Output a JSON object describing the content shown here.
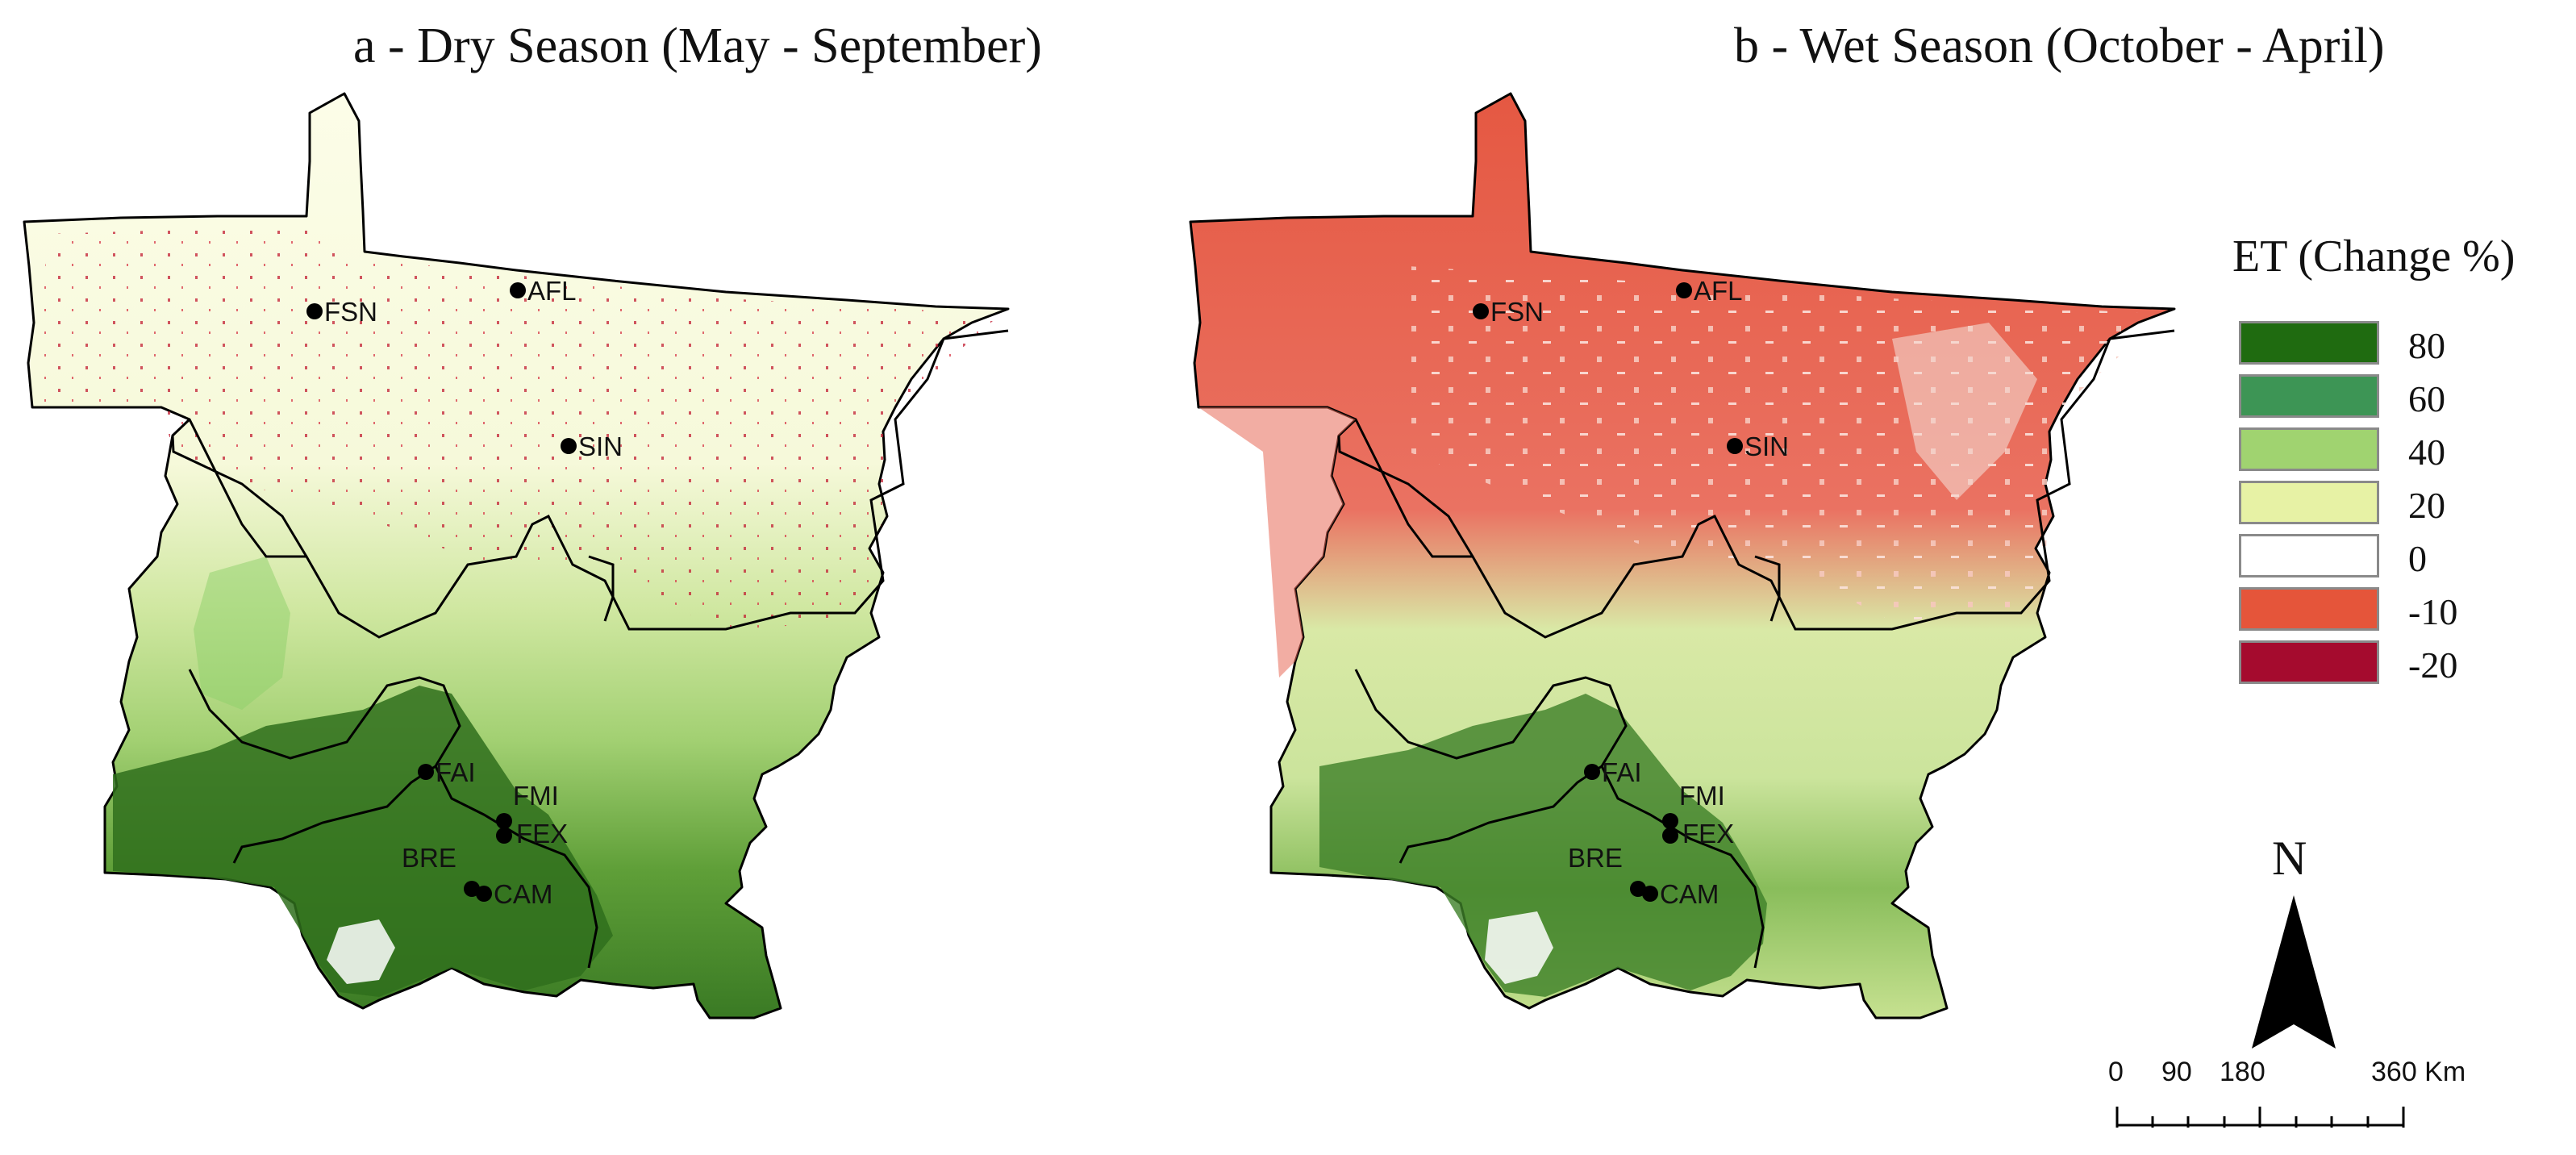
{
  "panels": [
    {
      "title": "a - Dry Season (May - September)",
      "sites": [
        {
          "code": "FSN"
        },
        {
          "code": "AFL"
        },
        {
          "code": "SIN"
        },
        {
          "code": "FAI"
        },
        {
          "code": "FMI"
        },
        {
          "code": "FEX"
        },
        {
          "code": "BRE"
        },
        {
          "code": "CAM"
        }
      ]
    },
    {
      "title": "b - Wet Season (October - April)",
      "sites": [
        {
          "code": "FSN"
        },
        {
          "code": "AFL"
        },
        {
          "code": "SIN"
        },
        {
          "code": "FAI"
        },
        {
          "code": "FMI"
        },
        {
          "code": "FEX"
        },
        {
          "code": "BRE"
        },
        {
          "code": "CAM"
        }
      ]
    }
  ],
  "legend": {
    "title": "ET (Change %)",
    "classes": [
      {
        "label": "80",
        "color": "#1f6b10"
      },
      {
        "label": "60",
        "color": "#3d9555"
      },
      {
        "label": "40",
        "color": "#a0d370"
      },
      {
        "label": "20",
        "color": "#e7f2a5"
      },
      {
        "label": "0",
        "color": "#ffffff"
      },
      {
        "label": "-10",
        "color": "#e5553a"
      },
      {
        "label": "-20",
        "color": "#a50b2e"
      }
    ]
  },
  "north_arrow": {
    "label": "N"
  },
  "scale_bar": {
    "ticks": [
      "0",
      "90",
      "180",
      "360 Km"
    ]
  }
}
